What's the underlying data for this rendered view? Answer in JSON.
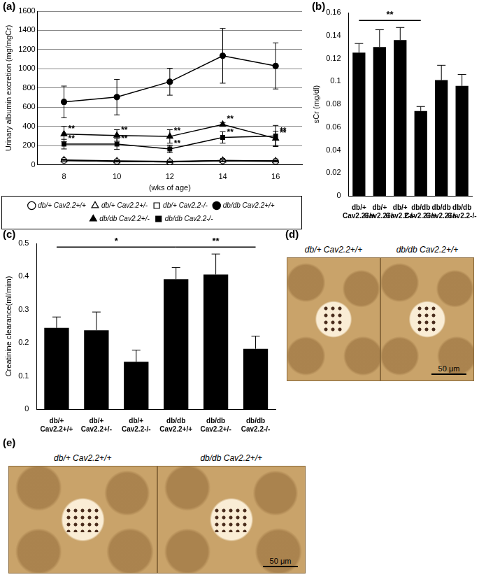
{
  "chart_data": [
    {
      "label": "(a)",
      "type": "line",
      "x": [
        8,
        10,
        12,
        14,
        16
      ],
      "x_label": "(wks of age)",
      "y_label": "Urinary albumin excretion (mg/mgCr)",
      "xlim": [
        7,
        17
      ],
      "xticks": [
        8,
        10,
        12,
        14,
        16
      ],
      "ylim": [
        0,
        1600
      ],
      "yticks": [
        0,
        200,
        400,
        600,
        800,
        1000,
        1200,
        1400,
        1600
      ],
      "grid": true,
      "legend": "bottom",
      "series": [
        {
          "name": "db/+ Cav2.2+/+",
          "color": "#000000",
          "marker": "open-circle",
          "values": [
            45,
            35,
            30,
            40,
            35
          ],
          "errors": [
            8,
            6,
            5,
            8,
            6
          ]
        },
        {
          "name": "db/+ Cav2.2+/-",
          "color": "#000000",
          "marker": "open-triangle",
          "values": [
            50,
            40,
            35,
            45,
            40
          ],
          "errors": [
            8,
            6,
            5,
            8,
            6
          ]
        },
        {
          "name": "db/+ Cav2.2-/-",
          "color": "#000000",
          "marker": "open-square",
          "values": [
            45,
            35,
            30,
            45,
            40
          ],
          "errors": [
            8,
            6,
            5,
            8,
            6
          ]
        },
        {
          "name": "db/db Cav2.2+/+",
          "color": "#000000",
          "marker": "filled-circle",
          "values": [
            655,
            705,
            865,
            1135,
            1030
          ],
          "errors": [
            165,
            185,
            140,
            285,
            240
          ]
        },
        {
          "name": "db/db Cav2.2+/-",
          "color": "#000000",
          "marker": "filled-triangle",
          "values": [
            320,
            305,
            295,
            420,
            275
          ],
          "errors": [
            80,
            60,
            70,
            20,
            75
          ],
          "significance": [
            "**",
            "**",
            "**",
            "**",
            "**"
          ]
        },
        {
          "name": "db/db Cav2.2-/-",
          "color": "#000000",
          "marker": "filled-square",
          "values": [
            215,
            215,
            165,
            285,
            300
          ],
          "errors": [
            50,
            55,
            40,
            60,
            110
          ],
          "significance": [
            "**",
            "**",
            "**",
            "**",
            "**"
          ]
        }
      ]
    },
    {
      "label": "(b)",
      "type": "bar",
      "categories": [
        "db/+ Cav2.2+/+",
        "db/+ Cav2.2+/-",
        "db/+ Cav2.2-/-",
        "db/db Cav2.2+/+",
        "db/db Cav2.2+/-",
        "db/db Cav2.2-/-"
      ],
      "values": [
        0.125,
        0.13,
        0.136,
        0.074,
        0.101,
        0.096
      ],
      "errors": [
        0.008,
        0.015,
        0.011,
        0.004,
        0.013,
        0.01
      ],
      "color": "#000000",
      "y_label": "sCr (mg/dl)",
      "ylim": [
        0,
        0.16
      ],
      "yticks": [
        0,
        0.02,
        0.04,
        0.06,
        0.08,
        0.1,
        0.12,
        0.14,
        0.16
      ],
      "grid": false,
      "significance": [
        {
          "from": "db/+ Cav2.2+/+",
          "to": "db/db Cav2.2+/+",
          "text": "**"
        }
      ]
    },
    {
      "label": "(c)",
      "type": "bar",
      "categories": [
        "db/+ Cav2.2+/+",
        "db/+ Cav2.2+/-",
        "db/+ Cav2.2-/-",
        "db/db Cav2.2+/+",
        "db/db Cav2.2+/-",
        "db/db Cav2.2-/-"
      ],
      "values": [
        0.245,
        0.238,
        0.143,
        0.392,
        0.406,
        0.182
      ],
      "errors": [
        0.033,
        0.055,
        0.035,
        0.035,
        0.062,
        0.038
      ],
      "color": "#000000",
      "y_label": "Creatinine clearance(ml/mim)",
      "ylim": [
        0,
        0.5
      ],
      "yticks": [
        0,
        0.1,
        0.2,
        0.3,
        0.4,
        0.5
      ],
      "grid": false,
      "significance": [
        {
          "from": "db/+ Cav2.2+/+",
          "to": "db/db Cav2.2+/+",
          "text": "*"
        },
        {
          "from": "db/db Cav2.2+/+",
          "to": "db/db Cav2.2-/-",
          "text": "**"
        }
      ]
    }
  ],
  "images": [
    {
      "label": "(d)",
      "captions": [
        "db/+ Cav2.2+/+",
        "db/db Cav2.2+/+"
      ],
      "scale_bar": "50 μm"
    },
    {
      "label": "(e)",
      "captions": [
        "db/+ Cav2.2+/+",
        "db/db Cav2.2+/+"
      ],
      "scale_bar": "50 μm"
    }
  ]
}
